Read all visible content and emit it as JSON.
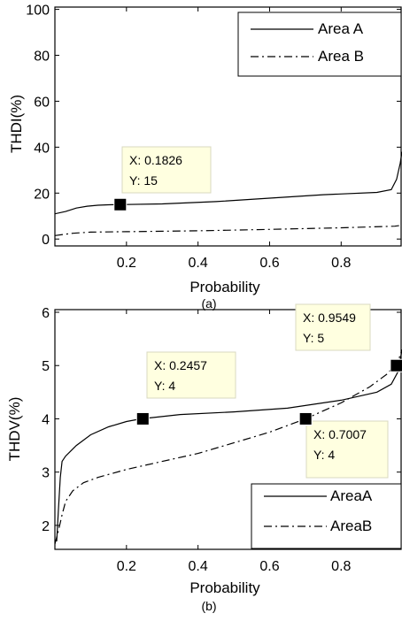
{
  "chart_data": [
    {
      "type": "line",
      "caption": "(a)",
      "xlabel": "Probability",
      "ylabel": "THDI(%)",
      "xlim": [
        0,
        0.97
      ],
      "ylim": [
        -3,
        101
      ],
      "xticks": [
        0.2,
        0.4,
        0.6,
        0.8
      ],
      "xtick_labels": [
        "0.2",
        "0.4",
        "0.6",
        "0.8"
      ],
      "yticks": [
        0,
        20,
        40,
        60,
        80,
        100
      ],
      "ytick_labels": [
        "0",
        "20",
        "40",
        "60",
        "80",
        "100"
      ],
      "legend_position": "top-right",
      "series": [
        {
          "name": "Area A",
          "style": "solid",
          "x": [
            0,
            0.03,
            0.06,
            0.09,
            0.12,
            0.15,
            0.18,
            0.3,
            0.45,
            0.6,
            0.75,
            0.9,
            0.94,
            0.955,
            0.965,
            0.97
          ],
          "y": [
            11,
            12,
            13.5,
            14.3,
            14.7,
            14.9,
            15,
            15.3,
            16.3,
            17.8,
            19.3,
            20.3,
            21.5,
            26,
            33,
            38
          ]
        },
        {
          "name": "Area B",
          "style": "dashdot",
          "x": [
            0,
            0.05,
            0.1,
            0.2,
            0.4,
            0.6,
            0.8,
            0.95,
            0.97
          ],
          "y": [
            1.5,
            2.5,
            3,
            3.2,
            3.6,
            4.2,
            4.9,
            5.6,
            6
          ]
        }
      ],
      "datatip": {
        "x_text": "X: 0.1826",
        "y_text": "Y: 15",
        "x": 0.1826,
        "y": 15
      }
    },
    {
      "type": "line",
      "caption": "(b)",
      "xlabel": "Probability",
      "ylabel": "THDV(%)",
      "xlim": [
        0,
        0.97
      ],
      "ylim": [
        1.55,
        6.05
      ],
      "xticks": [
        0.2,
        0.4,
        0.6,
        0.8
      ],
      "xtick_labels": [
        "0.2",
        "0.4",
        "0.6",
        "0.8"
      ],
      "yticks": [
        2,
        3,
        4,
        5,
        6
      ],
      "ytick_labels": [
        "2",
        "3",
        "4",
        "5",
        "6"
      ],
      "legend_position": "bottom-right",
      "series": [
        {
          "name": "AreaA",
          "style": "solid",
          "x": [
            0.005,
            0.01,
            0.015,
            0.02,
            0.03,
            0.06,
            0.1,
            0.15,
            0.2,
            0.24,
            0.35,
            0.5,
            0.65,
            0.8,
            0.9,
            0.94,
            0.96,
            0.97
          ],
          "y": [
            1.7,
            2.3,
            2.9,
            3.2,
            3.3,
            3.5,
            3.7,
            3.85,
            3.95,
            4.0,
            4.08,
            4.13,
            4.2,
            4.35,
            4.5,
            4.65,
            4.9,
            5.3
          ]
        },
        {
          "name": "AreaB",
          "style": "dashdot",
          "x": [
            0,
            0.01,
            0.02,
            0.03,
            0.05,
            0.08,
            0.12,
            0.2,
            0.3,
            0.4,
            0.5,
            0.6,
            0.7,
            0.8,
            0.88,
            0.93,
            0.96,
            0.97
          ],
          "y": [
            1.65,
            1.9,
            2.2,
            2.45,
            2.65,
            2.8,
            2.9,
            3.05,
            3.2,
            3.35,
            3.55,
            3.75,
            4.0,
            4.3,
            4.6,
            4.85,
            5.1,
            5.3
          ]
        }
      ],
      "datatips": [
        {
          "x_text": "X: 0.2457",
          "y_text": "Y: 4",
          "x": 0.2457,
          "y": 4
        },
        {
          "x_text": "X: 0.9549",
          "y_text": "Y: 5",
          "x": 0.9549,
          "y": 5
        },
        {
          "x_text": "X: 0.7007",
          "y_text": "Y: 4",
          "x": 0.7007,
          "y": 4
        }
      ]
    }
  ]
}
